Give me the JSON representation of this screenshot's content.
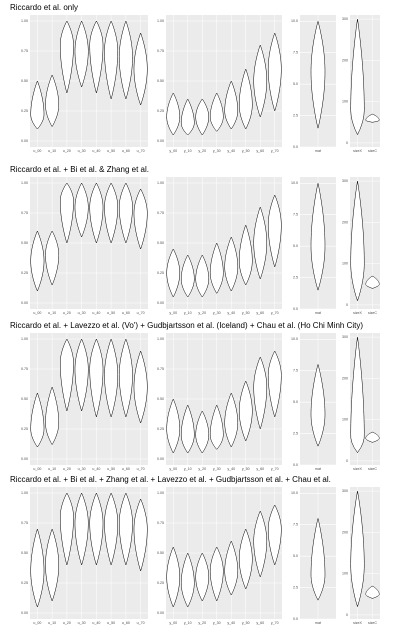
{
  "chart_data": [
    {
      "title": "Riccardo et al. only",
      "panels": [
        {
          "type": "violin",
          "categories": [
            "u_00",
            "u_10",
            "u_20",
            "u_30",
            "u_40",
            "u_50",
            "u_60",
            "u_70"
          ],
          "low": [
            0.1,
            0.12,
            0.4,
            0.45,
            0.4,
            0.35,
            0.35,
            0.3
          ],
          "peak": [
            0.22,
            0.3,
            0.8,
            0.75,
            0.8,
            0.75,
            0.7,
            0.6
          ],
          "high": [
            0.5,
            0.55,
            1.0,
            1.0,
            1.0,
            1.0,
            1.0,
            0.9
          ],
          "ylim": [
            -0.05,
            1.05
          ],
          "yticks": [
            {
              "value": 0,
              "label": "0.00"
            },
            0.25,
            {
              "value": 0.5,
              "label": "0.50"
            },
            0.75,
            {
              "value": 1,
              "label": "1.00"
            }
          ]
        },
        {
          "type": "violin",
          "categories": [
            "y_00",
            "y_10",
            "y_20",
            "y_30",
            "y_40",
            "y_50",
            "y_60",
            "y_70"
          ],
          "low": [
            0.05,
            0.05,
            0.05,
            0.08,
            0.1,
            0.1,
            0.2,
            0.25
          ],
          "peak": [
            0.2,
            0.15,
            0.2,
            0.2,
            0.25,
            0.3,
            0.5,
            0.6
          ],
          "high": [
            0.4,
            0.35,
            0.35,
            0.4,
            0.5,
            0.6,
            0.8,
            0.9
          ],
          "ylim": [
            -0.05,
            1.05
          ],
          "yticks": [
            {
              "value": 0,
              "label": "0.00"
            },
            0.25,
            {
              "value": 0.5,
              "label": "0.50"
            },
            0.75,
            {
              "value": 1,
              "label": "1.00"
            }
          ]
        },
        {
          "type": "violin",
          "categories": [
            "mat"
          ],
          "low": [
            1.5
          ],
          "peak": [
            6
          ],
          "high": [
            10
          ],
          "ylim": [
            0,
            10.5
          ],
          "yticks": [
            {
              "value": 0,
              "label": "0.0"
            },
            2.5,
            {
              "value": 5,
              "label": "5.0"
            },
            7.5,
            {
              "value": 10,
              "label": "10.0"
            }
          ]
        },
        {
          "type": "violin",
          "categories": [
            "sizeX",
            "sizeC"
          ],
          "low": [
            20,
            50
          ],
          "peak": [
            80,
            55
          ],
          "high": [
            300,
            70
          ],
          "ylim": [
            -10,
            310
          ],
          "yticks": [
            0,
            100,
            200,
            300
          ]
        }
      ]
    },
    {
      "title": "Riccardo et al. + Bi et al. & Zhang et al.",
      "panels": [
        {
          "type": "violin",
          "categories": [
            "u_00",
            "u_10",
            "u_20",
            "u_30",
            "u_40",
            "u_50",
            "u_60",
            "u_70"
          ],
          "low": [
            0.1,
            0.15,
            0.5,
            0.55,
            0.5,
            0.5,
            0.5,
            0.45
          ],
          "peak": [
            0.35,
            0.4,
            0.85,
            0.8,
            0.8,
            0.8,
            0.8,
            0.75
          ],
          "high": [
            0.6,
            0.6,
            1.0,
            1.0,
            1.0,
            1.0,
            1.0,
            0.95
          ],
          "ylim": [
            -0.05,
            1.05
          ],
          "yticks": [
            {
              "value": 0,
              "label": "0.00"
            },
            0.25,
            {
              "value": 0.5,
              "label": "0.50"
            },
            0.75,
            {
              "value": 1,
              "label": "1.00"
            }
          ]
        },
        {
          "type": "violin",
          "categories": [
            "y_00",
            "y_10",
            "y_20",
            "y_30",
            "y_40",
            "y_50",
            "y_60",
            "y_70"
          ],
          "low": [
            0.05,
            0.05,
            0.05,
            0.08,
            0.1,
            0.15,
            0.2,
            0.3
          ],
          "peak": [
            0.25,
            0.2,
            0.2,
            0.25,
            0.3,
            0.35,
            0.5,
            0.65
          ],
          "high": [
            0.45,
            0.4,
            0.4,
            0.5,
            0.55,
            0.65,
            0.8,
            0.9
          ],
          "ylim": [
            -0.05,
            1.05
          ],
          "yticks": [
            {
              "value": 0,
              "label": "0.00"
            },
            0.25,
            {
              "value": 0.5,
              "label": "0.50"
            },
            0.75,
            {
              "value": 1,
              "label": "1.00"
            }
          ]
        },
        {
          "type": "violin",
          "categories": [
            "mat"
          ],
          "low": [
            1.5
          ],
          "peak": [
            5
          ],
          "high": [
            10
          ],
          "ylim": [
            0,
            10.5
          ],
          "yticks": [
            {
              "value": 0,
              "label": "0.0"
            },
            2.5,
            {
              "value": 5,
              "label": "5.0"
            },
            7.5,
            {
              "value": 10,
              "label": "10.0"
            }
          ]
        },
        {
          "type": "violin",
          "categories": [
            "sizeX",
            "sizeC"
          ],
          "low": [
            10,
            40
          ],
          "peak": [
            100,
            50
          ],
          "high": [
            300,
            70
          ],
          "ylim": [
            -10,
            310
          ],
          "yticks": [
            0,
            100,
            200,
            300
          ]
        }
      ]
    },
    {
      "title": "Riccardo et al. + Lavezzo et al. (Vo') + Gudbjartsson et al. (Iceland) + Chau et al. (Ho Chi Minh City)",
      "panels": [
        {
          "type": "violin",
          "categories": [
            "u_00",
            "u_10",
            "u_20",
            "u_30",
            "u_40",
            "u_50",
            "u_60",
            "u_70"
          ],
          "low": [
            0.1,
            0.12,
            0.4,
            0.4,
            0.35,
            0.35,
            0.35,
            0.3
          ],
          "peak": [
            0.25,
            0.3,
            0.8,
            0.75,
            0.75,
            0.7,
            0.7,
            0.6
          ],
          "high": [
            0.55,
            0.6,
            1.0,
            1.0,
            1.0,
            1.0,
            1.0,
            0.9
          ],
          "ylim": [
            -0.05,
            1.05
          ],
          "yticks": [
            {
              "value": 0,
              "label": "0.00"
            },
            0.25,
            {
              "value": 0.5,
              "label": "0.50"
            },
            0.75,
            {
              "value": 1,
              "label": "1.00"
            }
          ]
        },
        {
          "type": "violin",
          "categories": [
            "y_00",
            "y_10",
            "y_20",
            "y_30",
            "y_40",
            "y_50",
            "y_60",
            "y_70"
          ],
          "low": [
            0.05,
            0.05,
            0.05,
            0.08,
            0.1,
            0.15,
            0.25,
            0.35
          ],
          "peak": [
            0.25,
            0.2,
            0.2,
            0.2,
            0.3,
            0.4,
            0.6,
            0.7
          ],
          "high": [
            0.5,
            0.45,
            0.4,
            0.45,
            0.55,
            0.65,
            0.85,
            0.9
          ],
          "ylim": [
            -0.05,
            1.05
          ],
          "yticks": [
            {
              "value": 0,
              "label": "0.00"
            },
            0.25,
            {
              "value": 0.5,
              "label": "0.50"
            },
            0.75,
            {
              "value": 1,
              "label": "1.00"
            }
          ]
        },
        {
          "type": "violin",
          "categories": [
            "mat"
          ],
          "low": [
            1.5
          ],
          "peak": [
            4
          ],
          "high": [
            8
          ],
          "ylim": [
            0,
            10.5
          ],
          "yticks": [
            {
              "value": 0,
              "label": "0.0"
            },
            2.5,
            {
              "value": 5,
              "label": "5.0"
            },
            7.5,
            {
              "value": 10,
              "label": "10.0"
            }
          ]
        },
        {
          "type": "violin",
          "categories": [
            "sizeX",
            "sizeC"
          ],
          "low": [
            20,
            45
          ],
          "peak": [
            60,
            55
          ],
          "high": [
            300,
            70
          ],
          "ylim": [
            -10,
            310
          ],
          "yticks": [
            0,
            100,
            200,
            300
          ]
        }
      ]
    },
    {
      "title": "Riccardo et al. + Bi et al. + Zhang et al. + Lavezzo et al. + Gudbjartsson et al. + Chau et al.",
      "panels": [
        {
          "type": "violin",
          "categories": [
            "u_00",
            "u_10",
            "u_20",
            "u_30",
            "u_40",
            "u_50",
            "u_60",
            "u_70"
          ],
          "low": [
            0.05,
            0.1,
            0.4,
            0.4,
            0.4,
            0.4,
            0.4,
            0.35
          ],
          "peak": [
            0.35,
            0.4,
            0.8,
            0.75,
            0.75,
            0.75,
            0.75,
            0.7
          ],
          "high": [
            0.7,
            0.7,
            1.0,
            1.0,
            1.0,
            1.0,
            1.0,
            0.95
          ],
          "ylim": [
            -0.05,
            1.05
          ],
          "yticks": [
            {
              "value": 0,
              "label": "0.00"
            },
            0.25,
            {
              "value": 0.5,
              "label": "0.50"
            },
            0.75,
            {
              "value": 1,
              "label": "1.00"
            }
          ]
        },
        {
          "type": "violin",
          "categories": [
            "y_00",
            "y_10",
            "y_20",
            "y_30",
            "y_40",
            "y_50",
            "y_60",
            "y_70"
          ],
          "low": [
            0.05,
            0.05,
            0.1,
            0.1,
            0.15,
            0.2,
            0.3,
            0.4
          ],
          "peak": [
            0.3,
            0.25,
            0.3,
            0.35,
            0.35,
            0.45,
            0.6,
            0.7
          ],
          "high": [
            0.55,
            0.5,
            0.5,
            0.55,
            0.6,
            0.7,
            0.85,
            0.9
          ],
          "ylim": [
            -0.05,
            1.05
          ],
          "yticks": [
            {
              "value": 0,
              "label": "0.00"
            },
            0.25,
            {
              "value": 0.5,
              "label": "0.50"
            },
            0.75,
            {
              "value": 1,
              "label": "1.00"
            }
          ]
        },
        {
          "type": "violin",
          "categories": [
            "mat"
          ],
          "low": [
            1.5
          ],
          "peak": [
            3.5
          ],
          "high": [
            8
          ],
          "ylim": [
            0,
            10.5
          ],
          "yticks": [
            {
              "value": 0,
              "label": "0.0"
            },
            2.5,
            {
              "value": 5,
              "label": "5.0"
            },
            7.5,
            {
              "value": 10,
              "label": "10.0"
            }
          ]
        },
        {
          "type": "violin",
          "categories": [
            "sizeX",
            "sizeC"
          ],
          "low": [
            20,
            40
          ],
          "peak": [
            120,
            50
          ],
          "high": [
            300,
            70
          ],
          "ylim": [
            -10,
            310
          ],
          "yticks": [
            0,
            100,
            200,
            300
          ]
        }
      ]
    }
  ]
}
